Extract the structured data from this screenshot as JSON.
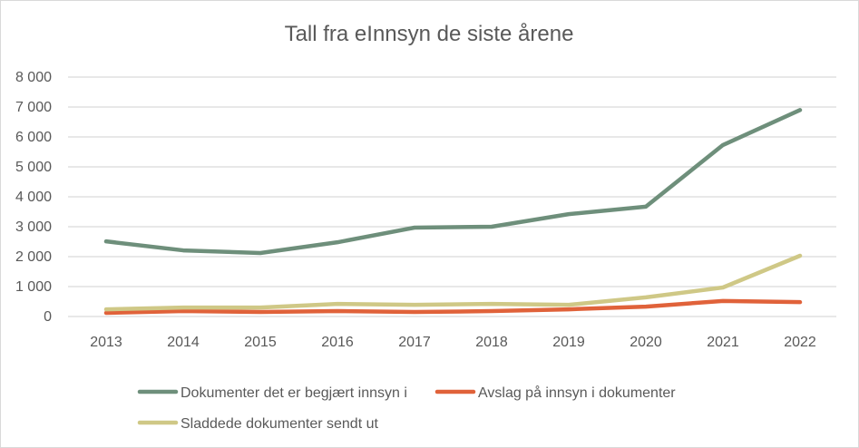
{
  "chart_data": {
    "type": "line",
    "title": "Tall fra eInnsyn de siste årene",
    "xlabel": "",
    "ylabel": "",
    "categories": [
      "2013",
      "2014",
      "2015",
      "2016",
      "2017",
      "2018",
      "2019",
      "2020",
      "2021",
      "2022"
    ],
    "ylim": [
      0,
      8000
    ],
    "yticks": [
      "0",
      "1 000",
      "2 000",
      "3 000",
      "4 000",
      "5 000",
      "6 000",
      "7 000",
      "8 000"
    ],
    "grid": true,
    "legend": "bottom",
    "series": [
      {
        "name": "Dokumenter det er begjært innsyn i",
        "color": "#6e8f7b",
        "values": [
          2510,
          2210,
          2120,
          2480,
          2970,
          3000,
          3420,
          3670,
          5730,
          6900
        ]
      },
      {
        "name": "Avslag på innsyn i dokumenter",
        "color": "#e0623a",
        "values": [
          120,
          180,
          150,
          180,
          150,
          180,
          240,
          330,
          520,
          480
        ]
      },
      {
        "name": "Sladdede dokumenter sendt ut",
        "color": "#cfc886",
        "values": [
          240,
          300,
          300,
          420,
          390,
          420,
          390,
          640,
          970,
          2030
        ]
      }
    ]
  }
}
